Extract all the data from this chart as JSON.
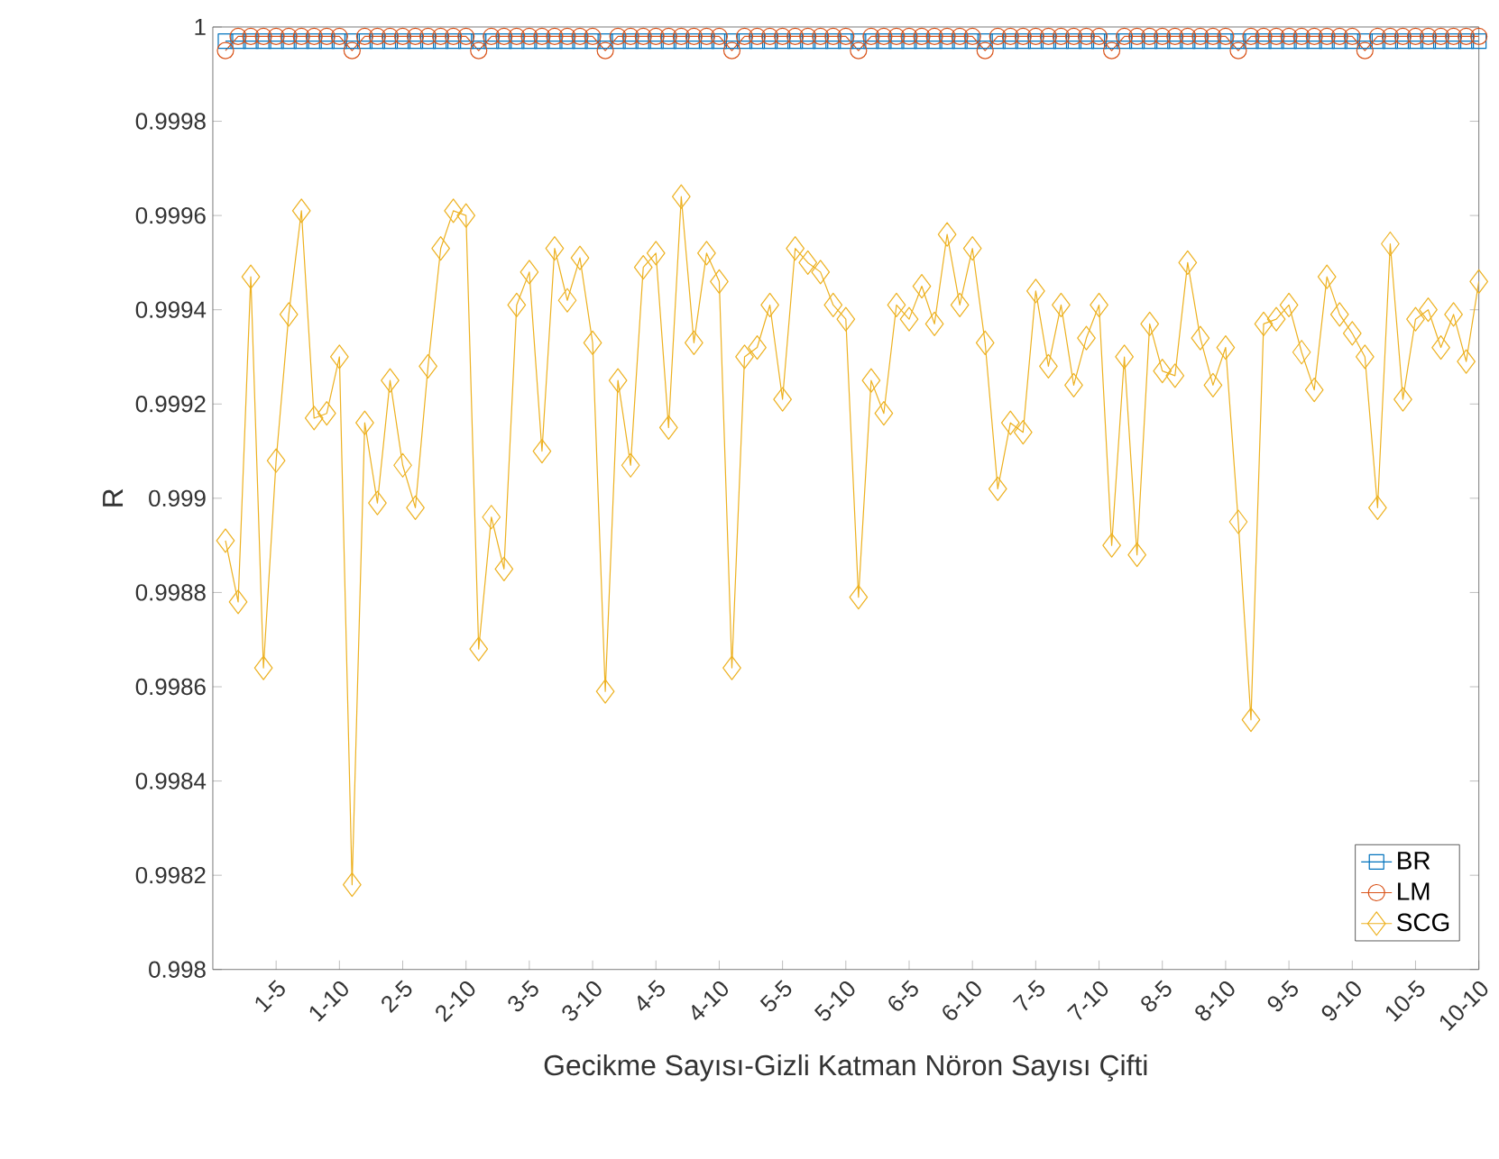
{
  "chart_data": {
    "type": "line",
    "xlabel": "Gecikme Sayısı-Gizli Katman Nöron Sayısı Çifti",
    "ylabel": "R",
    "categories": [
      null,
      null,
      null,
      null,
      "1-5",
      null,
      null,
      null,
      null,
      "1-10",
      null,
      null,
      null,
      null,
      "2-5",
      null,
      null,
      null,
      null,
      "2-10",
      null,
      null,
      null,
      null,
      "3-5",
      null,
      null,
      null,
      null,
      "3-10",
      null,
      null,
      null,
      null,
      "4-5",
      null,
      null,
      null,
      null,
      "4-10",
      null,
      null,
      null,
      null,
      "5-5",
      null,
      null,
      null,
      null,
      "5-10",
      null,
      null,
      null,
      null,
      "6-5",
      null,
      null,
      null,
      null,
      "6-10",
      null,
      null,
      null,
      null,
      "7-5",
      null,
      null,
      null,
      null,
      "7-10",
      null,
      null,
      null,
      null,
      "8-5",
      null,
      null,
      null,
      null,
      "8-10",
      null,
      null,
      null,
      null,
      "9-5",
      null,
      null,
      null,
      null,
      "9-10",
      null,
      null,
      null,
      null,
      "10-5",
      null,
      null,
      null,
      null,
      "10-10"
    ],
    "ylim": [
      0.998,
      1
    ],
    "yticks": [
      0.998,
      0.9982,
      0.9984,
      0.9986,
      0.9988,
      0.999,
      0.9992,
      0.9994,
      0.9996,
      0.9998,
      1
    ],
    "grid": false,
    "legend": "bottom right",
    "line_style": "solid",
    "series": [
      {
        "name": "BR",
        "color": "#0072bd",
        "marker": "square",
        "values": [
          0.99997,
          0.99997,
          0.99997,
          0.99997,
          0.99997,
          0.99997,
          0.99997,
          0.99997,
          0.99997,
          0.99997,
          0.99997,
          0.99997,
          0.99997,
          0.99997,
          0.99997,
          0.99997,
          0.99997,
          0.99997,
          0.99997,
          0.99997,
          0.99997,
          0.99997,
          0.99997,
          0.99997,
          0.99997,
          0.99997,
          0.99997,
          0.99997,
          0.99997,
          0.99997,
          0.99997,
          0.99997,
          0.99997,
          0.99997,
          0.99997,
          0.99997,
          0.99997,
          0.99997,
          0.99997,
          0.99997,
          0.99997,
          0.99997,
          0.99997,
          0.99997,
          0.99997,
          0.99997,
          0.99997,
          0.99997,
          0.99997,
          0.99997,
          0.99997,
          0.99997,
          0.99997,
          0.99997,
          0.99997,
          0.99997,
          0.99997,
          0.99997,
          0.99997,
          0.99997,
          0.99997,
          0.99997,
          0.99997,
          0.99997,
          0.99997,
          0.99997,
          0.99997,
          0.99997,
          0.99997,
          0.99997,
          0.99997,
          0.99997,
          0.99997,
          0.99997,
          0.99997,
          0.99997,
          0.99997,
          0.99997,
          0.99997,
          0.99997,
          0.99997,
          0.99997,
          0.99997,
          0.99997,
          0.99997,
          0.99997,
          0.99997,
          0.99997,
          0.99997,
          0.99997,
          0.99997,
          0.99997,
          0.99997,
          0.99997,
          0.99997,
          0.99997,
          0.99997,
          0.99997,
          0.99997,
          0.99997
        ]
      },
      {
        "name": "LM",
        "color": "#d95319",
        "marker": "circle",
        "values": [
          0.99995,
          0.99998,
          0.99998,
          0.99998,
          0.99998,
          0.99998,
          0.99998,
          0.99998,
          0.99998,
          0.99998,
          0.99995,
          0.99998,
          0.99998,
          0.99998,
          0.99998,
          0.99998,
          0.99998,
          0.99998,
          0.99998,
          0.99998,
          0.99995,
          0.99998,
          0.99998,
          0.99998,
          0.99998,
          0.99998,
          0.99998,
          0.99998,
          0.99998,
          0.99998,
          0.99995,
          0.99998,
          0.99998,
          0.99998,
          0.99998,
          0.99998,
          0.99998,
          0.99998,
          0.99998,
          0.99998,
          0.99995,
          0.99998,
          0.99998,
          0.99998,
          0.99998,
          0.99998,
          0.99998,
          0.99998,
          0.99998,
          0.99998,
          0.99995,
          0.99998,
          0.99998,
          0.99998,
          0.99998,
          0.99998,
          0.99998,
          0.99998,
          0.99998,
          0.99998,
          0.99995,
          0.99998,
          0.99998,
          0.99998,
          0.99998,
          0.99998,
          0.99998,
          0.99998,
          0.99998,
          0.99998,
          0.99995,
          0.99998,
          0.99998,
          0.99998,
          0.99998,
          0.99998,
          0.99998,
          0.99998,
          0.99998,
          0.99998,
          0.99995,
          0.99998,
          0.99998,
          0.99998,
          0.99998,
          0.99998,
          0.99998,
          0.99998,
          0.99998,
          0.99998,
          0.99995,
          0.99998,
          0.99998,
          0.99998,
          0.99998,
          0.99998,
          0.99998,
          0.99998,
          0.99998,
          0.99998
        ]
      },
      {
        "name": "SCG",
        "color": "#edb120",
        "marker": "diamond",
        "values": [
          0.99891,
          0.99878,
          0.99947,
          0.99864,
          0.99908,
          0.99939,
          0.99961,
          0.99917,
          0.99918,
          0.9993,
          0.99818,
          0.99916,
          0.99899,
          0.99925,
          0.99907,
          0.99898,
          0.99928,
          0.99953,
          0.99961,
          0.9996,
          0.99868,
          0.99896,
          0.99885,
          0.99941,
          0.99948,
          0.9991,
          0.99953,
          0.99942,
          0.99951,
          0.99933,
          0.99859,
          0.99925,
          0.99907,
          0.99949,
          0.99952,
          0.99915,
          0.99964,
          0.99933,
          0.99952,
          0.99946,
          0.99864,
          0.9993,
          0.99932,
          0.99941,
          0.99921,
          0.99953,
          0.9995,
          0.99948,
          0.99941,
          0.99938,
          0.99879,
          0.99925,
          0.99918,
          0.99941,
          0.99938,
          0.99945,
          0.99937,
          0.99956,
          0.99941,
          0.99953,
          0.99933,
          0.99902,
          0.99916,
          0.99914,
          0.99944,
          0.99928,
          0.99941,
          0.99924,
          0.99934,
          0.99941,
          0.9989,
          0.9993,
          0.99888,
          0.99937,
          0.99927,
          0.99926,
          0.9995,
          0.99934,
          0.99924,
          0.99932,
          0.99895,
          0.99853,
          0.99937,
          0.99938,
          0.99941,
          0.99931,
          0.99923,
          0.99947,
          0.99939,
          0.99935,
          0.9993,
          0.99898,
          0.99954,
          0.99921,
          0.99938,
          0.9994,
          0.99932,
          0.99939,
          0.99929,
          0.99946
        ]
      }
    ]
  }
}
